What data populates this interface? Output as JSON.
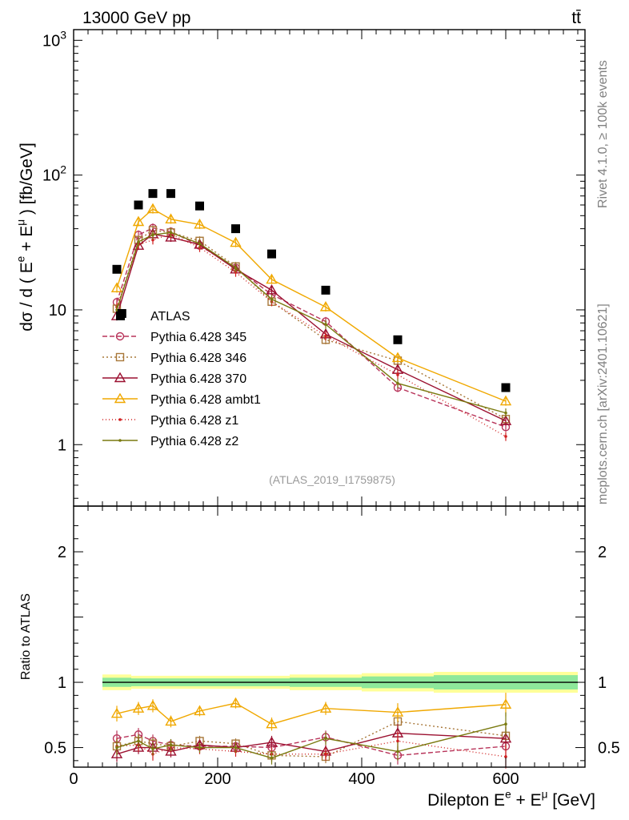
{
  "header": {
    "energy_label": "13000 GeV pp",
    "process_label": "tt̄",
    "side_label_top": "Rivet 4.1.0, ≥ 100k events",
    "side_label_bottom": "mcplots.cern.ch [arXiv:2401.10621]",
    "analysis_id": "(ATLAS_2019_I1759875)"
  },
  "chart_data": [
    {
      "type": "scatter",
      "panel": "main",
      "title": "",
      "ylabel": "dσ / d ( E^e + E^μ ) [fb/GeV]",
      "xlabel": "Dilepton E^e + E^μ [GeV]",
      "y_scale": "log",
      "xlim": [
        0,
        710
      ],
      "ylim": [
        0.35,
        1200
      ],
      "y_ticks": [
        {
          "value": 1,
          "label": "1"
        },
        {
          "value": 10,
          "label": "10"
        },
        {
          "value": 100,
          "label": "10^2"
        },
        {
          "value": 1000,
          "label": "10^3"
        }
      ],
      "x": [
        60,
        90,
        110,
        135,
        175,
        225,
        275,
        350,
        450,
        600
      ],
      "data_series": {
        "name": "ATLAS",
        "values": [
          20.0,
          60.0,
          73.0,
          73.0,
          59.0,
          40.0,
          26.0,
          14.0,
          6.0,
          2.65
        ],
        "extra_points": [
          {
            "x": 67,
            "y": 9.4
          }
        ]
      },
      "series": [
        {
          "name": "Pythia 6.428 345",
          "color": "#b8345a",
          "marker": "circle",
          "dash": "6,3",
          "values": [
            11.4,
            36.0,
            40.5,
            38.0,
            30.0,
            20.5,
            13.0,
            8.2,
            2.65,
            1.35
          ]
        },
        {
          "name": "Pythia 6.428 346",
          "color": "#a8783a",
          "marker": "square",
          "dash": "2,3",
          "values": [
            10.2,
            33.0,
            39.0,
            37.5,
            32.5,
            21.0,
            11.5,
            6.0,
            4.2,
            1.55
          ]
        },
        {
          "name": "Pythia 6.428 370",
          "color": "#9b1030",
          "marker": "triangle",
          "dash": "",
          "values": [
            9.0,
            30.0,
            36.5,
            34.5,
            30.5,
            20.0,
            14.0,
            6.6,
            3.6,
            1.5
          ]
        },
        {
          "name": "Pythia 6.428 ambt1",
          "color": "#f0a800",
          "marker": "triangle",
          "dash": "",
          "values": [
            14.5,
            45.0,
            56.0,
            47.0,
            43.0,
            31.5,
            16.8,
            10.5,
            4.4,
            2.1
          ]
        },
        {
          "name": "Pythia 6.428 z1",
          "color": "#d02020",
          "marker": "dot",
          "dash": "1,3",
          "values": [
            10.5,
            30.5,
            33.0,
            36.5,
            29.0,
            19.0,
            11.5,
            6.4,
            3.3,
            1.15
          ]
        },
        {
          "name": "Pythia 6.428 z2",
          "color": "#7a7a10",
          "marker": "dot",
          "dash": "",
          "values": [
            10.0,
            32.0,
            36.0,
            37.5,
            31.0,
            20.5,
            12.0,
            7.8,
            2.85,
            1.72
          ]
        }
      ],
      "legend": "middle-left"
    },
    {
      "type": "line",
      "panel": "ratio",
      "ylabel": "Ratio to ATLAS",
      "xlabel": "Dilepton E^e + E^μ [GeV]",
      "xlim": [
        0,
        710
      ],
      "ylim": [
        0.35,
        2.35
      ],
      "y_ticks": [
        {
          "value": 0.5,
          "label": "0.5"
        },
        {
          "value": 1,
          "label": "1"
        },
        {
          "value": 2,
          "label": "2"
        }
      ],
      "x_ticks": [
        {
          "value": 0,
          "label": "0"
        },
        {
          "value": 200,
          "label": "200"
        },
        {
          "value": 400,
          "label": "400"
        },
        {
          "value": 600,
          "label": "600"
        }
      ],
      "x": [
        60,
        90,
        110,
        135,
        175,
        225,
        275,
        350,
        450,
        600
      ],
      "reference_bins": [
        40,
        80,
        100,
        120,
        150,
        200,
        250,
        300,
        400,
        500,
        700
      ],
      "reference_band_inner": [
        0.035,
        0.03,
        0.03,
        0.03,
        0.03,
        0.03,
        0.03,
        0.035,
        0.045,
        0.055
      ],
      "reference_band_outer": [
        0.06,
        0.05,
        0.05,
        0.05,
        0.05,
        0.05,
        0.05,
        0.06,
        0.07,
        0.08
      ],
      "series": [
        {
          "name": "Pythia 6.428 345",
          "values": [
            0.57,
            0.6,
            0.55,
            0.52,
            0.51,
            0.51,
            0.5,
            0.58,
            0.44,
            0.51
          ]
        },
        {
          "name": "Pythia 6.428 346",
          "values": [
            0.51,
            0.55,
            0.53,
            0.51,
            0.55,
            0.53,
            0.44,
            0.43,
            0.7,
            0.59
          ]
        },
        {
          "name": "Pythia 6.428 370",
          "values": [
            0.45,
            0.5,
            0.5,
            0.47,
            0.52,
            0.5,
            0.54,
            0.47,
            0.61,
            0.57
          ]
        },
        {
          "name": "Pythia 6.428 ambt1",
          "values": [
            0.76,
            0.8,
            0.82,
            0.7,
            0.78,
            0.84,
            0.68,
            0.8,
            0.77,
            0.83
          ]
        },
        {
          "name": "Pythia 6.428 z1",
          "values": [
            0.51,
            0.52,
            0.45,
            0.5,
            0.49,
            0.47,
            0.45,
            0.45,
            0.55,
            0.43
          ]
        },
        {
          "name": "Pythia 6.428 z2",
          "values": [
            0.5,
            0.55,
            0.49,
            0.52,
            0.5,
            0.5,
            0.42,
            0.57,
            0.47,
            0.68
          ]
        }
      ],
      "ratio_errors": [
        0.06,
        0.05,
        0.05,
        0.045,
        0.04,
        0.04,
        0.05,
        0.05,
        0.07,
        0.09
      ]
    }
  ]
}
